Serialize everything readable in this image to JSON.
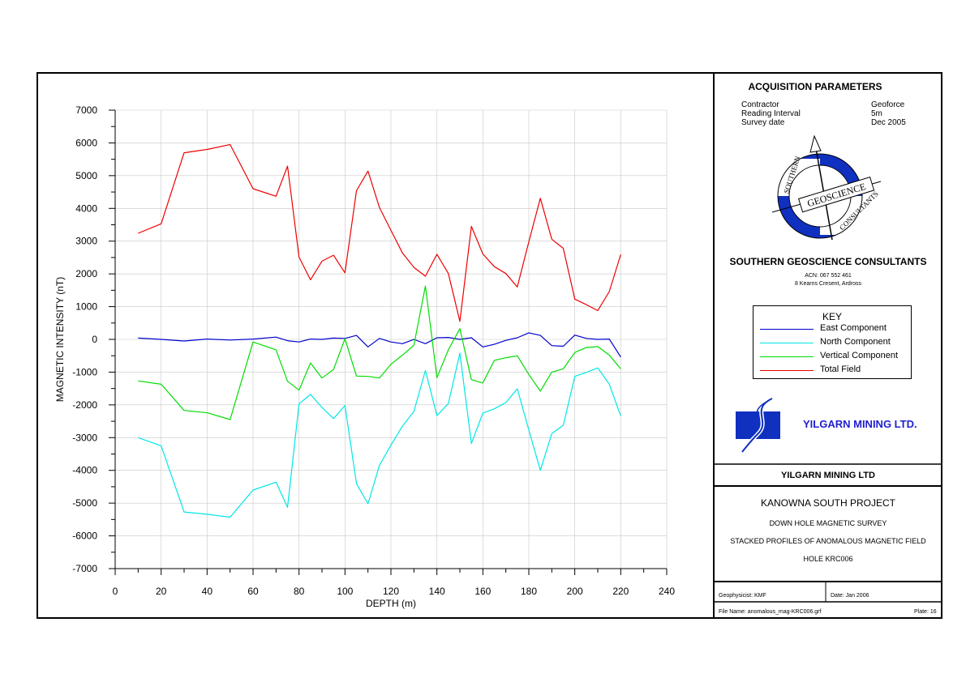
{
  "chart_data": {
    "type": "line",
    "xlabel": "DEPTH (m)",
    "ylabel": "MAGNETIC INTENSITY (nT)",
    "xlim": [
      0,
      240
    ],
    "ylim": [
      -7000,
      7000
    ],
    "x_ticks": [
      "0",
      "20",
      "40",
      "60",
      "80",
      "100",
      "120",
      "140",
      "160",
      "180",
      "200",
      "220",
      "240"
    ],
    "y_ticks": [
      "7000",
      "6000",
      "5000",
      "4000",
      "3000",
      "2000",
      "1000",
      "0",
      "-1000",
      "-2000",
      "-3000",
      "-4000",
      "-5000",
      "-6000",
      "-7000"
    ],
    "grid": true,
    "x": [
      10,
      20,
      30,
      40,
      50,
      60,
      70,
      75,
      80,
      85,
      90,
      95,
      100,
      105,
      110,
      115,
      120,
      125,
      130,
      135,
      140,
      145,
      150,
      155,
      160,
      165,
      170,
      175,
      180,
      185,
      190,
      195,
      200,
      205,
      210,
      215,
      220
    ],
    "series": [
      {
        "name": "East Component",
        "color": "#0000cc",
        "values": [
          40,
          0,
          -50,
          10,
          -20,
          10,
          70,
          -40,
          -80,
          10,
          0,
          40,
          30,
          120,
          -230,
          30,
          -80,
          -130,
          0,
          -130,
          50,
          60,
          0,
          50,
          -230,
          -150,
          -30,
          50,
          200,
          120,
          -190,
          -210,
          130,
          30,
          0,
          10,
          -540
        ]
      },
      {
        "name": "North Component",
        "color": "#00e6e6",
        "values": [
          -3000,
          -3250,
          -5270,
          -5340,
          -5430,
          -4600,
          -4360,
          -5130,
          -1970,
          -1680,
          -2080,
          -2420,
          -2020,
          -4400,
          -5020,
          -3850,
          -3230,
          -2650,
          -2200,
          -950,
          -2330,
          -1960,
          -420,
          -3180,
          -2250,
          -2120,
          -1930,
          -1510,
          -2770,
          -4000,
          -2880,
          -2620,
          -1130,
          -1010,
          -870,
          -1370,
          -2340
        ]
      },
      {
        "name": "Vertical Component",
        "color": "#00dd00",
        "values": [
          -1270,
          -1370,
          -2170,
          -2240,
          -2450,
          -80,
          -320,
          -1280,
          -1550,
          -720,
          -1180,
          -920,
          20,
          -1120,
          -1130,
          -1180,
          -760,
          -480,
          -180,
          1630,
          -1170,
          -320,
          330,
          -1230,
          -1330,
          -640,
          -560,
          -500,
          -1070,
          -1580,
          -1000,
          -900,
          -400,
          -250,
          -220,
          -480,
          -900
        ]
      },
      {
        "name": "Total Field",
        "color": "#ee0000",
        "values": [
          3240,
          3530,
          5700,
          5800,
          5950,
          4600,
          4370,
          5290,
          2510,
          1820,
          2390,
          2570,
          2030,
          4540,
          5140,
          4030,
          3330,
          2640,
          2200,
          1930,
          2600,
          2010,
          550,
          3450,
          2610,
          2220,
          2010,
          1600,
          2980,
          4310,
          3060,
          2780,
          1230,
          1060,
          880,
          1460,
          2590
        ]
      }
    ]
  },
  "side_panel": {
    "acq_title": "ACQUISITION PARAMETERS",
    "params": [
      {
        "label": "Contractor",
        "value": "Geoforce"
      },
      {
        "label": "Reading Interval",
        "value": "5m"
      },
      {
        "label": "Survey date",
        "value": "Dec 2005"
      }
    ],
    "logo_text": {
      "top": "SOUTHERN",
      "middle": "GEOSCIENCE",
      "bottom": "CONSULTANTS"
    },
    "company": "SOUTHERN GEOSCIENCE CONSULTANTS",
    "acn": "ACN: 067 552 461",
    "address": "8 Kearns Cresent, Ardross",
    "legend_title": "KEY",
    "yilgarn_logo_text": "YILGARN MINING LTD.",
    "client": "YILGARN MINING LTD",
    "project": "KANOWNA SOUTH PROJECT",
    "survey": "DOWN HOLE MAGNETIC SURVEY",
    "profiles": "STACKED PROFILES OF ANOMALOUS MAGNETIC FIELD",
    "hole": "HOLE KRC006",
    "geophysicist": "Geophysicist: KMF",
    "date": "Date: Jan 2006",
    "file_name": "File Name: anomalous_mag-KRC006.grf",
    "plate": "Plate: 16"
  },
  "colors": {
    "east": "#0000cc",
    "north": "#00e6e6",
    "vertical": "#00dd00",
    "total": "#ee0000",
    "logo_blue": "#1030c0"
  }
}
